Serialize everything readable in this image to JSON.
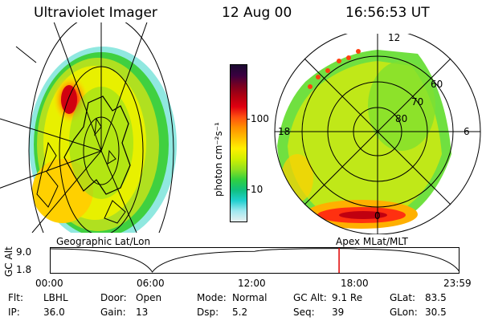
{
  "header": {
    "title": "Ultraviolet Imager",
    "date": "12 Aug 00",
    "time": "16:56:53 UT"
  },
  "left_panel": {
    "caption": "Geographic Lat/Lon"
  },
  "right_panel": {
    "caption": "Apex MLat/MLT",
    "lat_labels": [
      "60",
      "70",
      "80"
    ],
    "mlt_labels": {
      "top": "12",
      "left": "18",
      "right": "6",
      "bottom": "0"
    }
  },
  "colorbar": {
    "unit_label": "photon cm⁻²s⁻¹",
    "ticks": [
      "100",
      "10"
    ],
    "colors": [
      "#1a0a30",
      "#3a0040",
      "#7a0020",
      "#b00010",
      "#e00010",
      "#ff5010",
      "#ff9000",
      "#ffc000",
      "#fff000",
      "#d0f000",
      "#90e020",
      "#30d040",
      "#10c080",
      "#20d0d0",
      "#a0e8f0",
      "#e8f0f0"
    ]
  },
  "timeline": {
    "ylabel": "GC Alt",
    "y_ticks": [
      "9.0",
      "1.8"
    ],
    "x_ticks": [
      "00:00",
      "06:00",
      "12:00",
      "18:00",
      "23:59"
    ],
    "marker_color": "#e00000"
  },
  "chart_data": {
    "type": "line",
    "title": "",
    "xlabel": "",
    "ylabel": "GC Alt",
    "xlim": [
      "00:00",
      "23:59"
    ],
    "ylim": [
      1.8,
      9.0
    ],
    "x": [
      "00:00",
      "06:00",
      "12:00",
      "16:56",
      "18:00",
      "23:59"
    ],
    "values": [
      9.0,
      1.8,
      8.2,
      9.1,
      8.9,
      1.9
    ],
    "marker_x": "16:56"
  },
  "footer": [
    [
      {
        "k": "Flt:",
        "v": "LBHL"
      },
      {
        "k": "Door:",
        "v": "Open"
      },
      {
        "k": "Mode:",
        "v": "Normal"
      },
      {
        "k": "GC Alt:",
        "v": "9.1 Re"
      },
      {
        "k": "GLat:",
        "v": "83.5"
      }
    ],
    [
      {
        "k": "IP:",
        "v": "36.0"
      },
      {
        "k": "Gain:",
        "v": "13"
      },
      {
        "k": "Dsp:",
        "v": "5.2"
      },
      {
        "k": "Seq:",
        "v": "39"
      },
      {
        "k": "GLon:",
        "v": "30.5"
      }
    ]
  ]
}
